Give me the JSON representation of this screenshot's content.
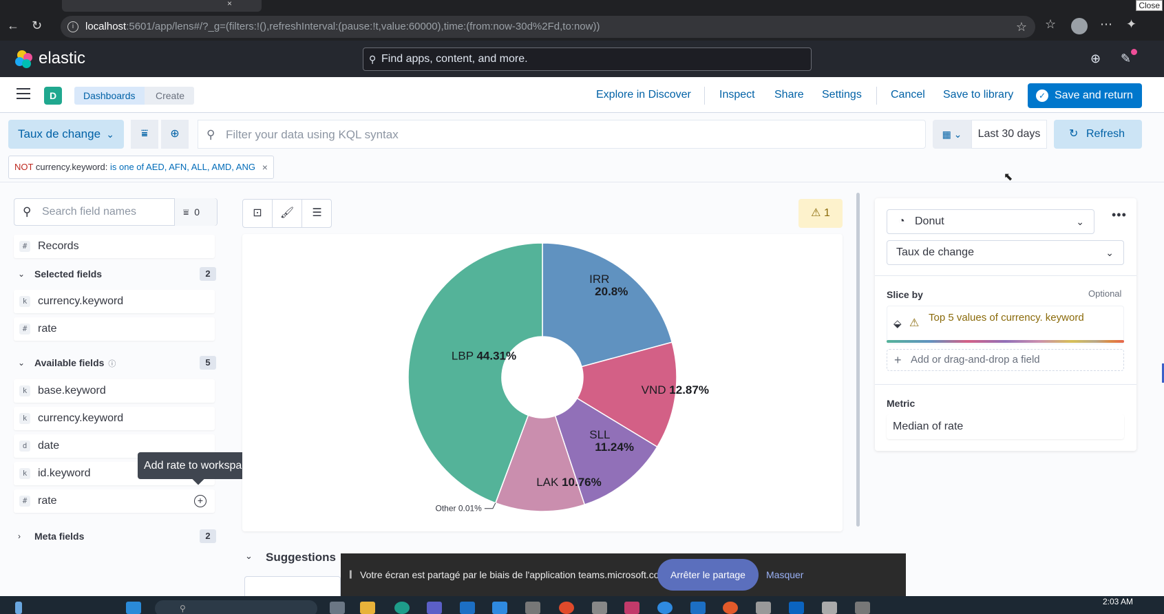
{
  "browser": {
    "url_host": "localhost",
    "url_rest": ":5601/app/lens#/?_g=(filters:!(),refreshInterval:(pause:!t,value:60000),time:(from:now-30d%2Fd,to:now))",
    "close_tooltip": "Close"
  },
  "header": {
    "brand": "elastic",
    "search_placeholder": "Find apps, content, and more."
  },
  "breadcrumbs": {
    "space_initial": "D",
    "items": [
      "Dashboards",
      "Create"
    ]
  },
  "top_actions": {
    "explore": "Explore in Discover",
    "inspect": "Inspect",
    "share": "Share",
    "settings": "Settings",
    "cancel": "Cancel",
    "save_library": "Save to library",
    "save_return": "Save and return"
  },
  "query": {
    "data_view": "Taux de change",
    "placeholder": "Filter your data using KQL syntax",
    "date_range": "Last 30 days",
    "refresh": "Refresh"
  },
  "filter_pill": {
    "negation": "NOT",
    "field": "currency.keyword:",
    "value": "is one of AED, AFN, ALL, AMD, ANG"
  },
  "field_list": {
    "search_placeholder": "Search field names",
    "filter_count": "0",
    "records": "Records",
    "selected_label": "Selected fields",
    "selected_count": "2",
    "selected": [
      {
        "token": "k",
        "name": "currency.keyword"
      },
      {
        "token": "#",
        "name": "rate"
      }
    ],
    "available_label": "Available fields",
    "available_count": "5",
    "available": [
      {
        "token": "k",
        "name": "base.keyword"
      },
      {
        "token": "k",
        "name": "currency.keyword"
      },
      {
        "token": "d",
        "name": "date"
      },
      {
        "token": "k",
        "name": "id.keyword"
      },
      {
        "token": "#",
        "name": "rate"
      }
    ],
    "meta_label": "Meta fields",
    "meta_count": "2",
    "tooltip": "Add rate to workspace"
  },
  "workspace": {
    "warning_count": "1",
    "suggestions_label": "Suggestions"
  },
  "chart_data": {
    "type": "pie",
    "donut": true,
    "slices": [
      {
        "label": "IRR",
        "value": 20.8,
        "display": "20.8%",
        "color": "#6092c0"
      },
      {
        "label": "VND",
        "value": 12.87,
        "display": "12.87%",
        "color": "#d36086"
      },
      {
        "label": "SLL",
        "value": 11.24,
        "display": "11.24%",
        "color": "#9170b8"
      },
      {
        "label": "LAK",
        "value": 10.76,
        "display": "10.76%",
        "color": "#ca8eae"
      },
      {
        "label": "Other",
        "value": 0.01,
        "display": "0.01%",
        "color": "#d6bf57"
      },
      {
        "label": "LBP",
        "value": 44.31,
        "display": "44.31%",
        "color": "#54b399"
      }
    ]
  },
  "config": {
    "chart_type": "Donut",
    "layer_source": "Taux de change",
    "slice_by_label": "Slice by",
    "optional": "Optional",
    "slice_dimension": "Top 5 values of currency. keyword",
    "add_field": "Add or drag-and-drop a field",
    "metric_label": "Metric",
    "metric_value": "Median of rate"
  },
  "share_banner": {
    "message": "Votre écran est partagé par le biais de l'application teams.microsoft.com.",
    "stop": "Arrêter le partage",
    "hide": "Masquer"
  },
  "taskbar": {
    "clock": "2:03 AM"
  }
}
